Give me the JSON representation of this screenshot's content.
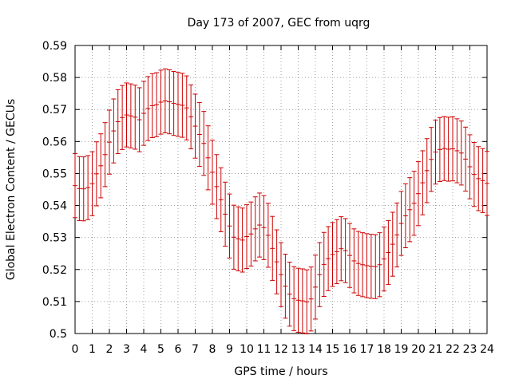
{
  "chart_data": {
    "type": "line",
    "title": "Day 173 of 2007, GEC from uqrg",
    "xlabel": "GPS time / hours",
    "ylabel": "Global Electron Content / GECUs",
    "xlim": [
      0,
      24
    ],
    "ylim": [
      0.5,
      0.59
    ],
    "x_ticks": [
      0,
      1,
      2,
      3,
      4,
      5,
      6,
      7,
      8,
      9,
      10,
      11,
      12,
      13,
      14,
      15,
      16,
      17,
      18,
      19,
      20,
      21,
      22,
      23,
      24
    ],
    "x_tick_labels": [
      "0",
      "1",
      "2",
      "3",
      "4",
      "5",
      "6",
      "7",
      "8",
      "9",
      "10",
      "11",
      "12",
      "13",
      "14",
      "15",
      "16",
      "17",
      "18",
      "19",
      "20",
      "21",
      "22",
      "23",
      "24"
    ],
    "y_ticks": [
      0.5,
      0.51,
      0.52,
      0.53,
      0.54,
      0.55,
      0.56,
      0.57,
      0.58,
      0.59
    ],
    "y_tick_labels": [
      "0.5",
      "0.51",
      "0.52",
      "0.53",
      "0.54",
      "0.55",
      "0.56",
      "0.57",
      "0.58",
      "0.59"
    ],
    "grid": true,
    "series": [
      {
        "style": "errorbars",
        "color": "#cc0000",
        "error": 0.01,
        "x": [
          0,
          0.25,
          0.5,
          0.75,
          1,
          1.25,
          1.5,
          1.75,
          2,
          2.25,
          2.5,
          2.75,
          3,
          3.25,
          3.5,
          3.75,
          4,
          4.25,
          4.5,
          4.75,
          5,
          5.25,
          5.5,
          5.75,
          6,
          6.25,
          6.5,
          6.75,
          7,
          7.25,
          7.5,
          7.75,
          8,
          8.25,
          8.5,
          8.75,
          9,
          9.25,
          9.5,
          9.75,
          10,
          10.25,
          10.5,
          10.75,
          11,
          11.25,
          11.5,
          11.75,
          12,
          12.25,
          12.5,
          12.75,
          13,
          13.25,
          13.5,
          13.75,
          14,
          14.25,
          14.5,
          14.75,
          15,
          15.25,
          15.5,
          15.75,
          16,
          16.25,
          16.5,
          16.75,
          17,
          17.25,
          17.5,
          17.75,
          18,
          18.25,
          18.5,
          18.75,
          19,
          19.25,
          19.5,
          19.75,
          20,
          20.25,
          20.5,
          20.75,
          21,
          21.25,
          21.5,
          21.75,
          22,
          22.25,
          22.5,
          22.75,
          23,
          23.25,
          23.5,
          23.75,
          24
        ],
        "values": [
          0.5462,
          0.5453,
          0.5452,
          0.5456,
          0.5468,
          0.5499,
          0.5524,
          0.5559,
          0.5598,
          0.5633,
          0.5662,
          0.5675,
          0.5683,
          0.568,
          0.5676,
          0.5668,
          0.5688,
          0.5703,
          0.5712,
          0.5715,
          0.5723,
          0.5727,
          0.5724,
          0.5719,
          0.5716,
          0.5713,
          0.5705,
          0.5677,
          0.5648,
          0.5622,
          0.5594,
          0.5549,
          0.5504,
          0.5459,
          0.5418,
          0.5373,
          0.5336,
          0.5301,
          0.5296,
          0.5292,
          0.5303,
          0.5311,
          0.5327,
          0.5339,
          0.5331,
          0.5307,
          0.5266,
          0.5224,
          0.5184,
          0.5148,
          0.5123,
          0.5109,
          0.5104,
          0.5102,
          0.5099,
          0.5108,
          0.5145,
          0.5184,
          0.5216,
          0.5234,
          0.5247,
          0.5256,
          0.5265,
          0.5259,
          0.5244,
          0.5227,
          0.5219,
          0.5215,
          0.5212,
          0.521,
          0.5209,
          0.5215,
          0.5233,
          0.5253,
          0.5279,
          0.5308,
          0.5344,
          0.5368,
          0.5387,
          0.5407,
          0.5437,
          0.5471,
          0.5509,
          0.5544,
          0.5567,
          0.5575,
          0.5578,
          0.5576,
          0.5577,
          0.5571,
          0.5564,
          0.5545,
          0.5521,
          0.5497,
          0.5484,
          0.5478,
          0.5469
        ]
      }
    ]
  }
}
